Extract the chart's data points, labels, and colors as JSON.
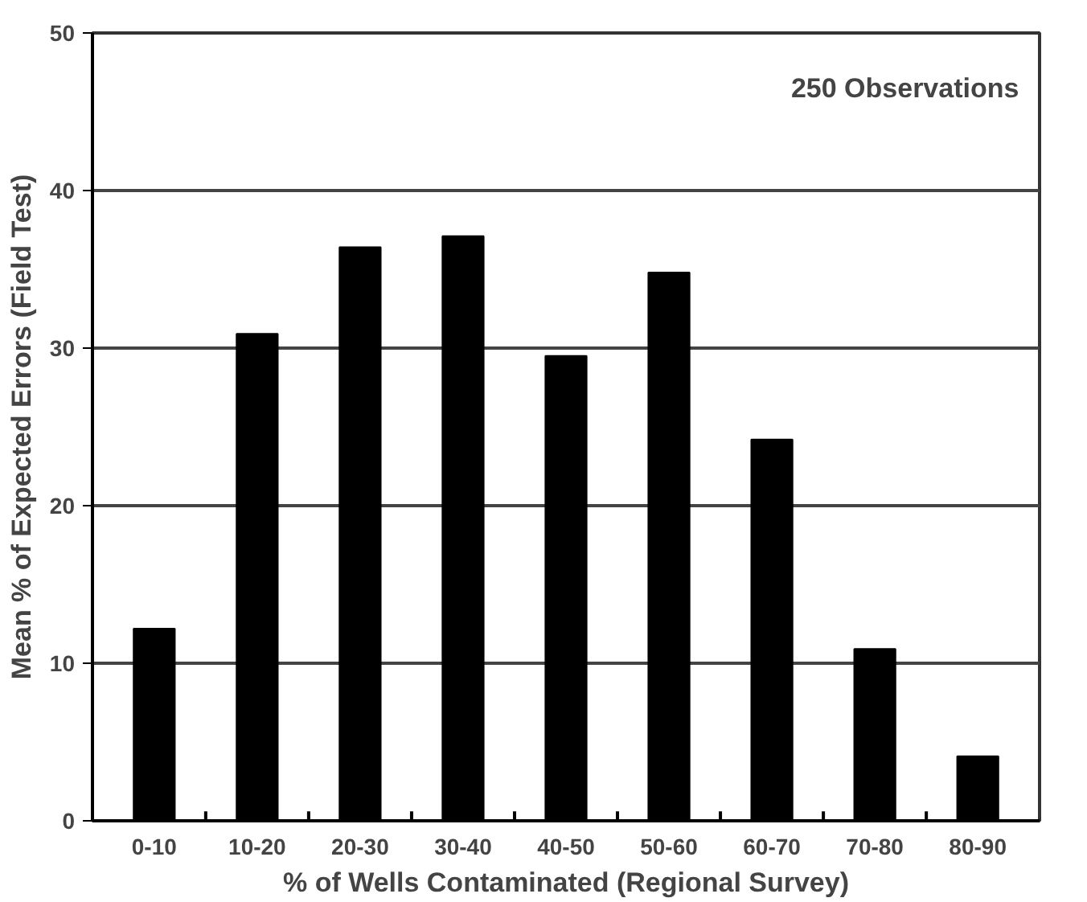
{
  "chart_data": {
    "type": "bar",
    "categories": [
      "0-10",
      "10-20",
      "20-30",
      "30-40",
      "40-50",
      "50-60",
      "60-70",
      "70-80",
      "80-90"
    ],
    "values": [
      12.2,
      30.9,
      36.4,
      37.1,
      29.5,
      34.8,
      24.2,
      10.9,
      4.1
    ],
    "color": "#000000",
    "xlabel": "% of Wells Contaminated (Regional Survey)",
    "ylabel": "Mean % of Expected Errors (Field Test)",
    "ylim": [
      0,
      50
    ],
    "yticks": [
      0,
      10,
      20,
      30,
      40,
      50
    ],
    "grid": "y",
    "annotations": [
      "250 Observations"
    ]
  }
}
